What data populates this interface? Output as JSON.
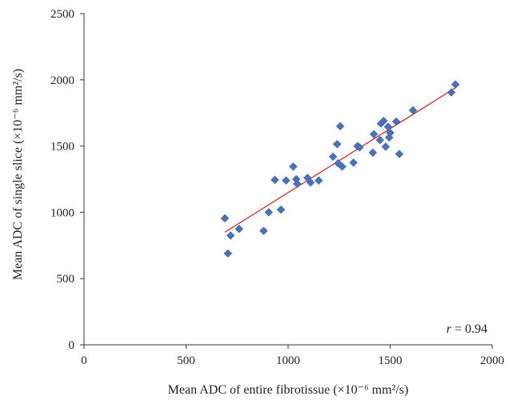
{
  "chart_data": {
    "type": "scatter",
    "title": "",
    "xlabel": "Mean ADC of entire fibrotissue (×10⁻⁶ mm²/s)",
    "ylabel": "Mean ADC of single slice (×10⁻⁶ mm²/s)",
    "xlim": [
      0,
      2000
    ],
    "ylim": [
      0,
      2500
    ],
    "x_ticks": [
      0,
      500,
      1000,
      1500,
      2000
    ],
    "y_ticks": [
      0,
      500,
      1000,
      1500,
      2000,
      2500
    ],
    "grid": false,
    "legend": "none",
    "annotation": {
      "variable": "r",
      "text": " = 0.94"
    },
    "marker_color": "#4a72b8",
    "fit_line_color": "#e0191c",
    "fit_line": {
      "x": [
        690,
        1820
      ],
      "y": [
        850,
        1940
      ]
    },
    "points": [
      {
        "x": 690,
        "y": 955
      },
      {
        "x": 705,
        "y": 690
      },
      {
        "x": 718,
        "y": 825
      },
      {
        "x": 760,
        "y": 875
      },
      {
        "x": 880,
        "y": 860
      },
      {
        "x": 905,
        "y": 1000
      },
      {
        "x": 935,
        "y": 1245
      },
      {
        "x": 965,
        "y": 1020
      },
      {
        "x": 990,
        "y": 1240
      },
      {
        "x": 1025,
        "y": 1345
      },
      {
        "x": 1040,
        "y": 1250
      },
      {
        "x": 1045,
        "y": 1215
      },
      {
        "x": 1095,
        "y": 1260
      },
      {
        "x": 1110,
        "y": 1225
      },
      {
        "x": 1150,
        "y": 1240
      },
      {
        "x": 1220,
        "y": 1420
      },
      {
        "x": 1240,
        "y": 1515
      },
      {
        "x": 1245,
        "y": 1370
      },
      {
        "x": 1255,
        "y": 1650
      },
      {
        "x": 1265,
        "y": 1345
      },
      {
        "x": 1320,
        "y": 1375
      },
      {
        "x": 1340,
        "y": 1500
      },
      {
        "x": 1350,
        "y": 1490
      },
      {
        "x": 1415,
        "y": 1450
      },
      {
        "x": 1420,
        "y": 1590
      },
      {
        "x": 1450,
        "y": 1545
      },
      {
        "x": 1455,
        "y": 1670
      },
      {
        "x": 1468,
        "y": 1690
      },
      {
        "x": 1478,
        "y": 1495
      },
      {
        "x": 1490,
        "y": 1645
      },
      {
        "x": 1495,
        "y": 1565
      },
      {
        "x": 1500,
        "y": 1600
      },
      {
        "x": 1530,
        "y": 1685
      },
      {
        "x": 1545,
        "y": 1440
      },
      {
        "x": 1612,
        "y": 1770
      },
      {
        "x": 1800,
        "y": 1905
      },
      {
        "x": 1820,
        "y": 1965
      }
    ]
  }
}
